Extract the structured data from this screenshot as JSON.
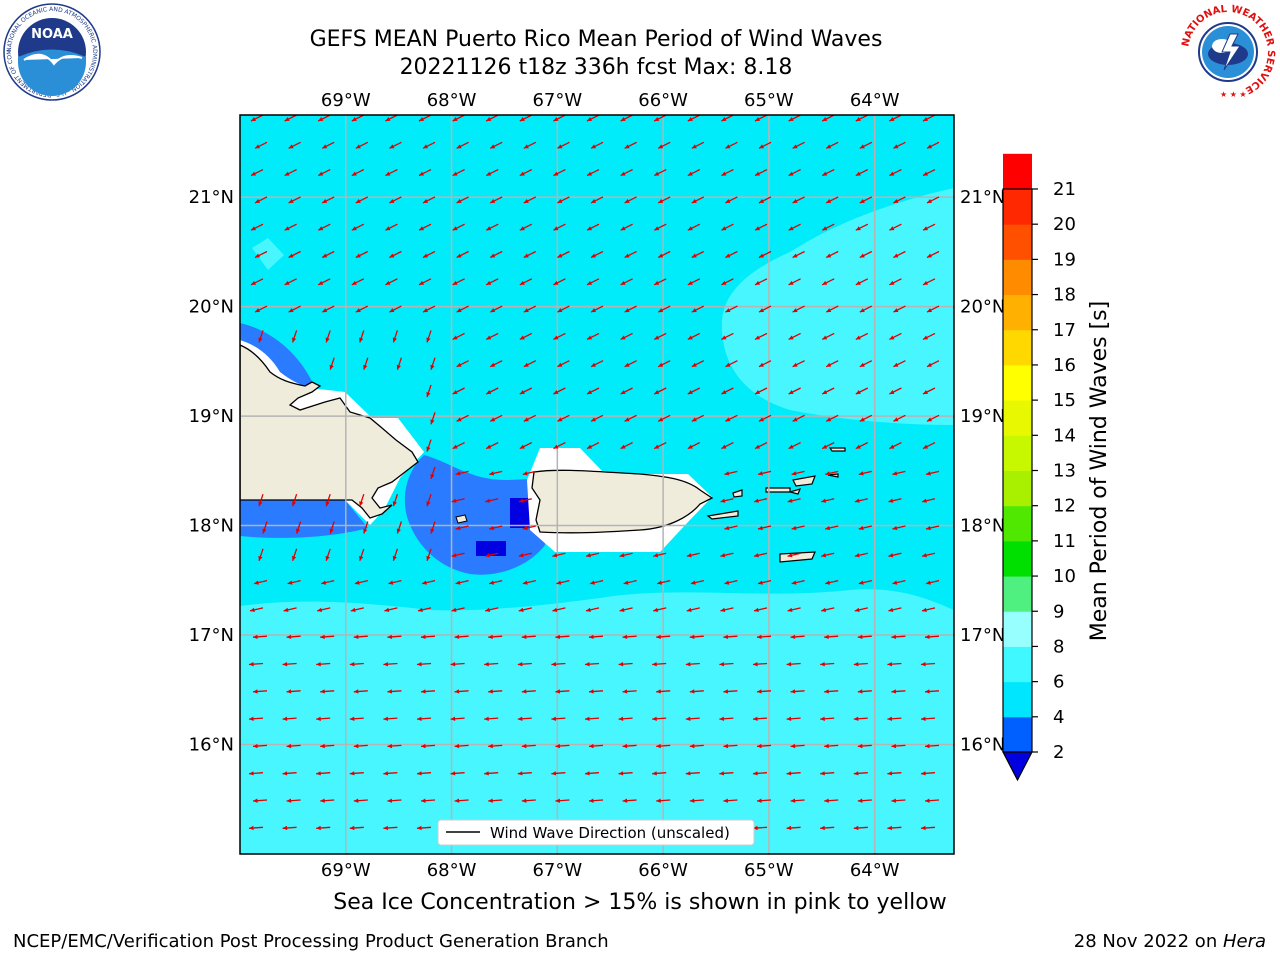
{
  "title": {
    "line1": "GEFS MEAN Puerto Rico Mean Period of Wind Waves",
    "line2": "20221126 t18z 336h fcst   Max: 8.18"
  },
  "map": {
    "lon_labels": [
      "69°W",
      "68°W",
      "67°W",
      "66°W",
      "65°W",
      "64°W"
    ],
    "lon_values": [
      -69,
      -68,
      -67,
      -66,
      -65,
      -64
    ],
    "lat_labels": [
      "21°N",
      "20°N",
      "19°N",
      "18°N",
      "17°N",
      "16°N"
    ],
    "lat_values": [
      21,
      20,
      19,
      18,
      17,
      16
    ],
    "extent": {
      "lon": [
        -70,
        -63.25
      ],
      "lat": [
        15,
        21.75
      ]
    },
    "legend_label": "Wind Wave Direction (unscaled)",
    "arrow_color": "#e00000",
    "vector_direction": "toward west-southwest"
  },
  "colorbar": {
    "label": "Mean Period of Wind Waves [s]",
    "ticks": [
      "2",
      "4",
      "6",
      "8",
      "9",
      "10",
      "11",
      "12",
      "13",
      "14",
      "15",
      "16",
      "17",
      "18",
      "19",
      "20",
      "21"
    ],
    "tick_values": [
      2,
      4,
      6,
      8,
      9,
      10,
      11,
      12,
      13,
      14,
      15,
      16,
      17,
      18,
      19,
      20,
      21
    ],
    "colors": [
      "#0060ff",
      "#00e6ff",
      "#40f8ff",
      "#98ffff",
      "#50f080",
      "#00e000",
      "#50e800",
      "#a8f000",
      "#c8f800",
      "#e8f800",
      "#ffff00",
      "#ffd800",
      "#ffb000",
      "#ff8c00",
      "#ff5000",
      "#ff2800",
      "#ff0000"
    ],
    "under_color": "#0000e0"
  },
  "bottom_note": "Sea Ice Concentration > 15% is shown in pink to yellow",
  "footer": {
    "left": "NCEP/EMC/Verification Post Processing Product Generation Branch",
    "right_prefix": "28 Nov 2022 on ",
    "right_host": "Hera"
  },
  "logos": {
    "noaa": {
      "text": "NOAA",
      "ring_text": "NATIONAL OCEANIC AND ATMOSPHERIC ADMINISTRATION · U.S. DEPARTMENT OF COMMERCE"
    },
    "nws": {
      "ring_text": "NATIONAL WEATHER SERVICE"
    }
  }
}
